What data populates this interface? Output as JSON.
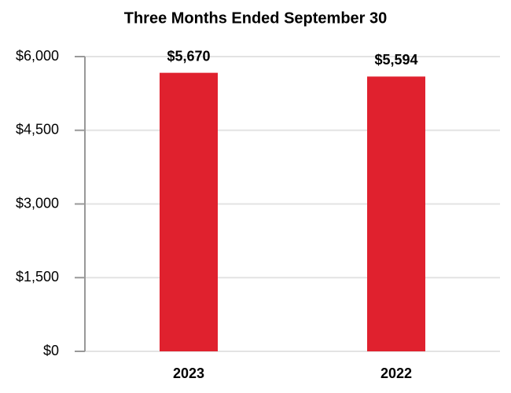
{
  "chart_data": {
    "type": "bar",
    "title": "Three Months Ended September 30",
    "categories": [
      "2023",
      "2022"
    ],
    "values": [
      5670,
      5594
    ],
    "value_labels": [
      "$5,670",
      "$5,594"
    ],
    "color": "#e0212e",
    "ylim": [
      0,
      6000
    ],
    "yticks": [
      {
        "value": 0,
        "label": "$0"
      },
      {
        "value": 1500,
        "label": "$1,500"
      },
      {
        "value": 3000,
        "label": "$3,000"
      },
      {
        "value": 4500,
        "label": "$4,500"
      },
      {
        "value": 6000,
        "label": "$6,000"
      }
    ],
    "grid": true
  }
}
